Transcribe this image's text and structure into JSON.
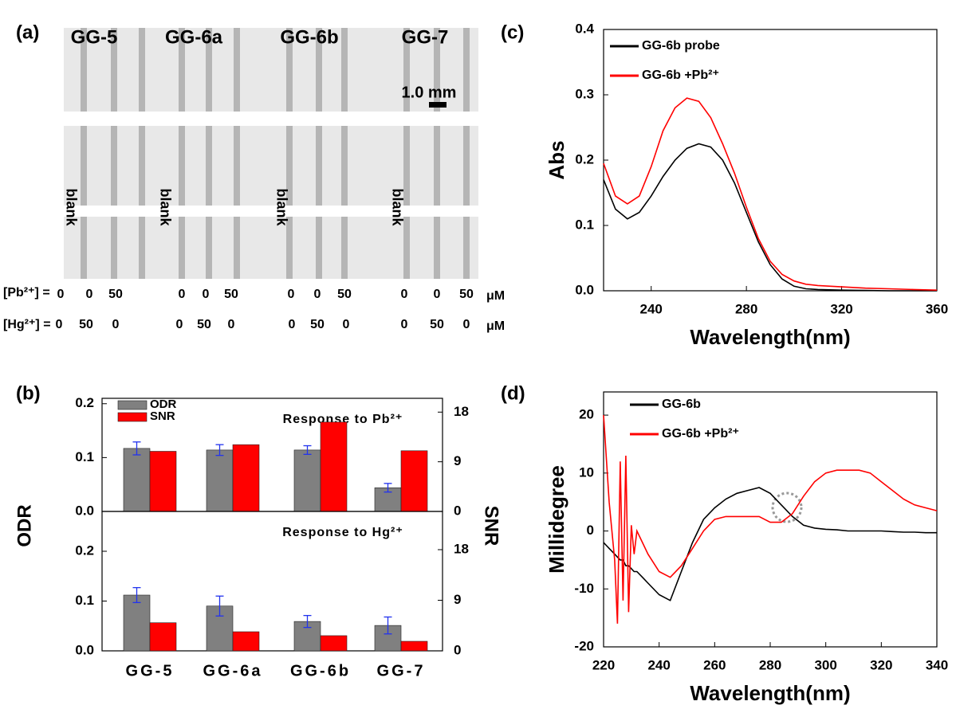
{
  "image_panel": {
    "label": "(a)",
    "columns": [
      "GG-5",
      "GG-6a",
      "GG-6b",
      "GG-7"
    ],
    "scale_bar": "1.0 mm",
    "blank": "blank",
    "pb_label": "[Pb²⁺] =",
    "hg_label": "[Hg²⁺] =",
    "pb_values": [
      [
        0,
        0,
        50
      ],
      [
        0,
        0,
        50
      ],
      [
        0,
        0,
        50
      ],
      [
        0,
        0,
        50
      ]
    ],
    "hg_values": [
      [
        0,
        50,
        0
      ],
      [
        0,
        50,
        0
      ],
      [
        0,
        50,
        0
      ],
      [
        0,
        50,
        0
      ]
    ],
    "unit": "μM"
  },
  "chart_data": [
    {
      "type": "bar",
      "label": "(b)",
      "y_label": "ODR",
      "y2_label": "SNR",
      "categories": [
        "GG-5",
        "GG-6a",
        "GG-6b",
        "GG-7"
      ],
      "error_color": "#2233ee",
      "panels": [
        {
          "annotation": "Response to Pb²⁺",
          "ylim": [
            0,
            0.21
          ],
          "yticks": [
            {
              "value": 0,
              "label": "0.0"
            },
            0.1,
            0.2
          ],
          "y2lim": [
            0,
            20.5
          ],
          "y2ticks": [
            0,
            9,
            18
          ],
          "series": [
            {
              "name": "ODR",
              "color": "#808080",
              "values": [
                0.117,
                0.114,
                0.114,
                0.044
              ],
              "errors": [
                0.012,
                0.01,
                0.008,
                0.008
              ]
            },
            {
              "name": "SNR",
              "color": "#ff0000",
              "axis": "y2",
              "values": [
                10.9,
                12.1,
                16.2,
                11.0
              ]
            }
          ]
        },
        {
          "annotation": "Response to  Hg²⁺",
          "ylim": [
            0,
            0.28
          ],
          "yticks": [
            {
              "value": 0,
              "label": "0.0"
            },
            0.1,
            0.2
          ],
          "y2lim": [
            0,
            24.8
          ],
          "y2ticks": [
            0,
            9,
            18
          ],
          "series": [
            {
              "color": "#808080",
              "values": [
                0.112,
                0.09,
                0.059,
                0.051
              ],
              "errors": [
                0.015,
                0.02,
                0.012,
                0.017
              ]
            },
            {
              "color": "#ff0000",
              "axis": "y2",
              "values": [
                5.0,
                3.4,
                2.7,
                1.7
              ]
            }
          ]
        }
      ]
    },
    {
      "type": "line",
      "label": "(c)",
      "x_label": "Wavelength(nm)",
      "y_label": "Abs",
      "x": [
        220,
        225,
        230,
        235,
        240,
        245,
        250,
        255,
        260,
        265,
        270,
        275,
        280,
        285,
        290,
        295,
        300,
        305,
        310,
        320,
        330,
        340,
        350,
        360
      ],
      "xlim": [
        220,
        360
      ],
      "xticks": [
        240,
        280,
        320,
        360
      ],
      "ylim": [
        0,
        0.4
      ],
      "yticks": [
        {
          "value": 0,
          "label": "0.0"
        },
        0.1,
        0.2,
        0.3,
        0.4
      ],
      "series": [
        {
          "name": "GG-6b probe",
          "color": "#000000",
          "values": [
            0.17,
            0.125,
            0.11,
            0.12,
            0.145,
            0.175,
            0.2,
            0.218,
            0.225,
            0.22,
            0.2,
            0.165,
            0.12,
            0.075,
            0.04,
            0.018,
            0.007,
            0.003,
            0.002,
            0.001,
            0.0005,
            0,
            0,
            0
          ]
        },
        {
          "name": "GG-6b +Pb²⁺",
          "color": "#ff0000",
          "values": [
            0.195,
            0.145,
            0.133,
            0.145,
            0.19,
            0.245,
            0.28,
            0.295,
            0.29,
            0.265,
            0.225,
            0.18,
            0.128,
            0.08,
            0.045,
            0.025,
            0.015,
            0.01,
            0.008,
            0.006,
            0.004,
            0.003,
            0.002,
            0.001
          ]
        }
      ]
    },
    {
      "type": "line",
      "label": "(d)",
      "x_label": "Wavelength(nm)",
      "y_label": "Millidegree",
      "x": [
        220,
        222,
        224,
        225,
        226,
        227,
        228,
        229,
        230,
        231,
        232,
        234,
        236,
        240,
        244,
        248,
        252,
        256,
        260,
        264,
        268,
        272,
        276,
        280,
        284,
        288,
        292,
        296,
        300,
        304,
        308,
        312,
        316,
        320,
        324,
        328,
        332,
        336,
        340
      ],
      "xlim": [
        220,
        340
      ],
      "xticks": [
        220,
        240,
        260,
        280,
        300,
        320,
        340
      ],
      "ylim": [
        -20,
        24
      ],
      "yticks": [
        -20,
        -10,
        0,
        10,
        20
      ],
      "series": [
        {
          "name": "GG-6b",
          "color": "#000000",
          "values": [
            -2,
            -3,
            -4,
            -4.5,
            -5,
            -5,
            -6,
            -6,
            -6.5,
            -7,
            -7,
            -8,
            -9,
            -11,
            -12,
            -7,
            -2,
            2,
            4,
            5.5,
            6.5,
            7,
            7.5,
            6.5,
            4.5,
            2.5,
            1,
            0.5,
            0.3,
            0.2,
            0,
            0,
            0,
            0,
            -0.1,
            -0.2,
            -0.2,
            -0.3,
            -0.3
          ]
        },
        {
          "name": "GG-6b +Pb²⁺",
          "color": "#ff0000",
          "values": [
            20,
            5,
            -5,
            -16,
            12,
            -12,
            13,
            -14,
            1,
            -4,
            0,
            -2,
            -4,
            -7,
            -8,
            -6,
            -3,
            0,
            2,
            2.5,
            2.5,
            2.5,
            2.5,
            1.5,
            1.5,
            3,
            6,
            8.5,
            10,
            10.5,
            10.5,
            10.5,
            10,
            8.5,
            7,
            5.5,
            4.5,
            4,
            3.5
          ]
        }
      ]
    }
  ]
}
